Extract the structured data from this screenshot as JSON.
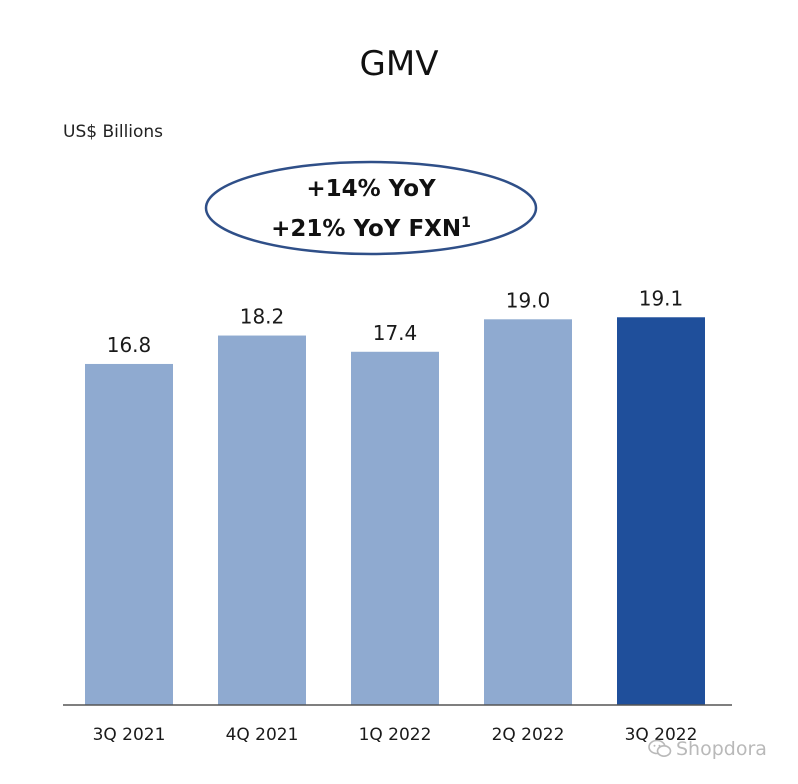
{
  "chart_data": {
    "type": "bar",
    "title": "GMV",
    "ylabel": "US$ Billions",
    "categories": [
      "3Q 2021",
      "4Q 2021",
      "1Q 2022",
      "2Q 2022",
      "3Q 2022"
    ],
    "values": [
      16.8,
      18.2,
      17.4,
      19.0,
      19.1
    ],
    "value_labels": [
      "16.8",
      "18.2",
      "17.4",
      "19.0",
      "19.1"
    ],
    "highlight_index": 4,
    "ylim": [
      0,
      21
    ],
    "grid": false,
    "annotations": [
      "+14% YoY",
      "+21% YoY FXN",
      "1"
    ]
  },
  "colors": {
    "bar": "#8faad0",
    "bar_highlight": "#1f4f9b",
    "ellipse_stroke": "#2f4f88"
  },
  "watermark": {
    "text": "Shopdora",
    "icon": "wechat-icon"
  }
}
